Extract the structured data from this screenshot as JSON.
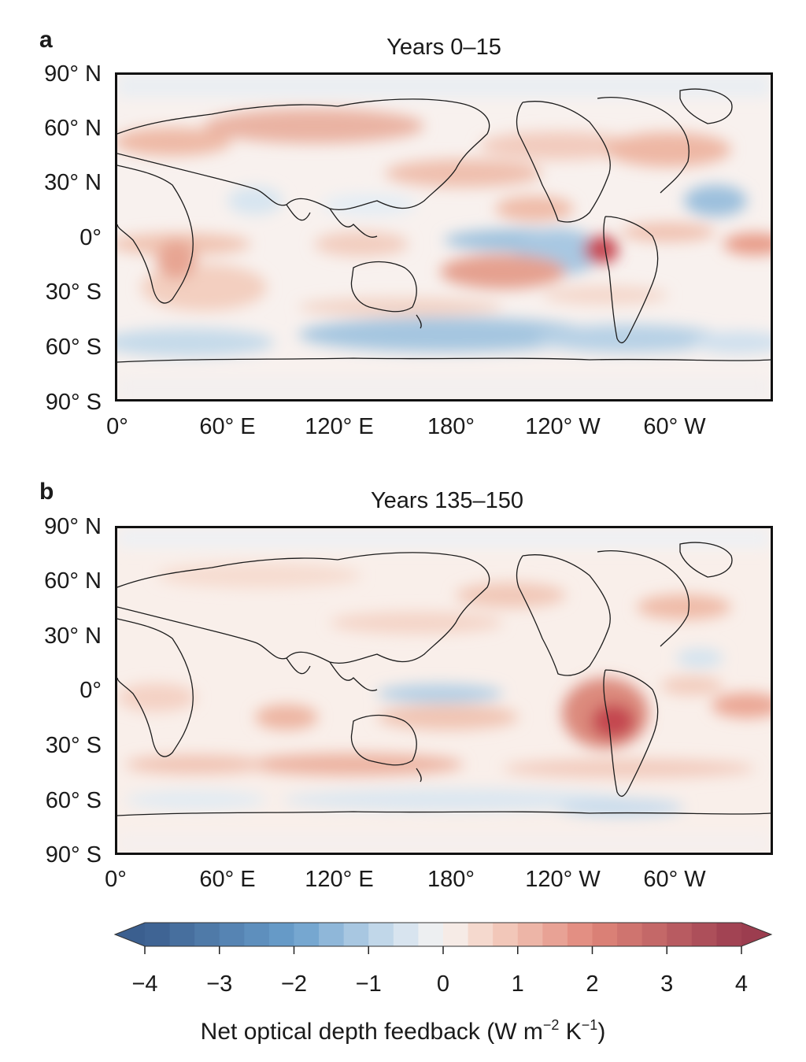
{
  "panels": [
    {
      "letter": "a",
      "title": "Years 0–15",
      "lat_labels": [
        "90° N",
        "60° N",
        "30° N",
        "0°",
        "30° S",
        "60° S",
        "90° S"
      ],
      "lon_labels": [
        "0°",
        "60° E",
        "120° E",
        "180°",
        "120° W",
        "60° W"
      ]
    },
    {
      "letter": "b",
      "title": "Years 135–150",
      "lat_labels": [
        "90° N",
        "60° N",
        "30° N",
        "0°",
        "30° S",
        "60° S",
        "90° S"
      ],
      "lon_labels": [
        "0°",
        "60° E",
        "120° E",
        "180°",
        "120° W",
        "60° W"
      ]
    }
  ],
  "colorbar": {
    "label_main": "Net optical depth feedback (W m",
    "label_exp1": "−2",
    "label_mid": " K",
    "label_exp2": "−1",
    "label_end": ")",
    "ticks": [
      "−4",
      "−3",
      "−2",
      "−1",
      "0",
      "1",
      "2",
      "3",
      "4"
    ],
    "range": [
      -4,
      4
    ],
    "extend": "both",
    "colors": {
      "negative_strong": "#3b5f8f",
      "negative_mid": "#6a9fcc",
      "negative_light": "#cfe0ee",
      "neutral": "#f7f4f2",
      "positive_light": "#f5d2c4",
      "positive_mid": "#e0867a",
      "positive_strong": "#9c3d4f"
    }
  }
}
